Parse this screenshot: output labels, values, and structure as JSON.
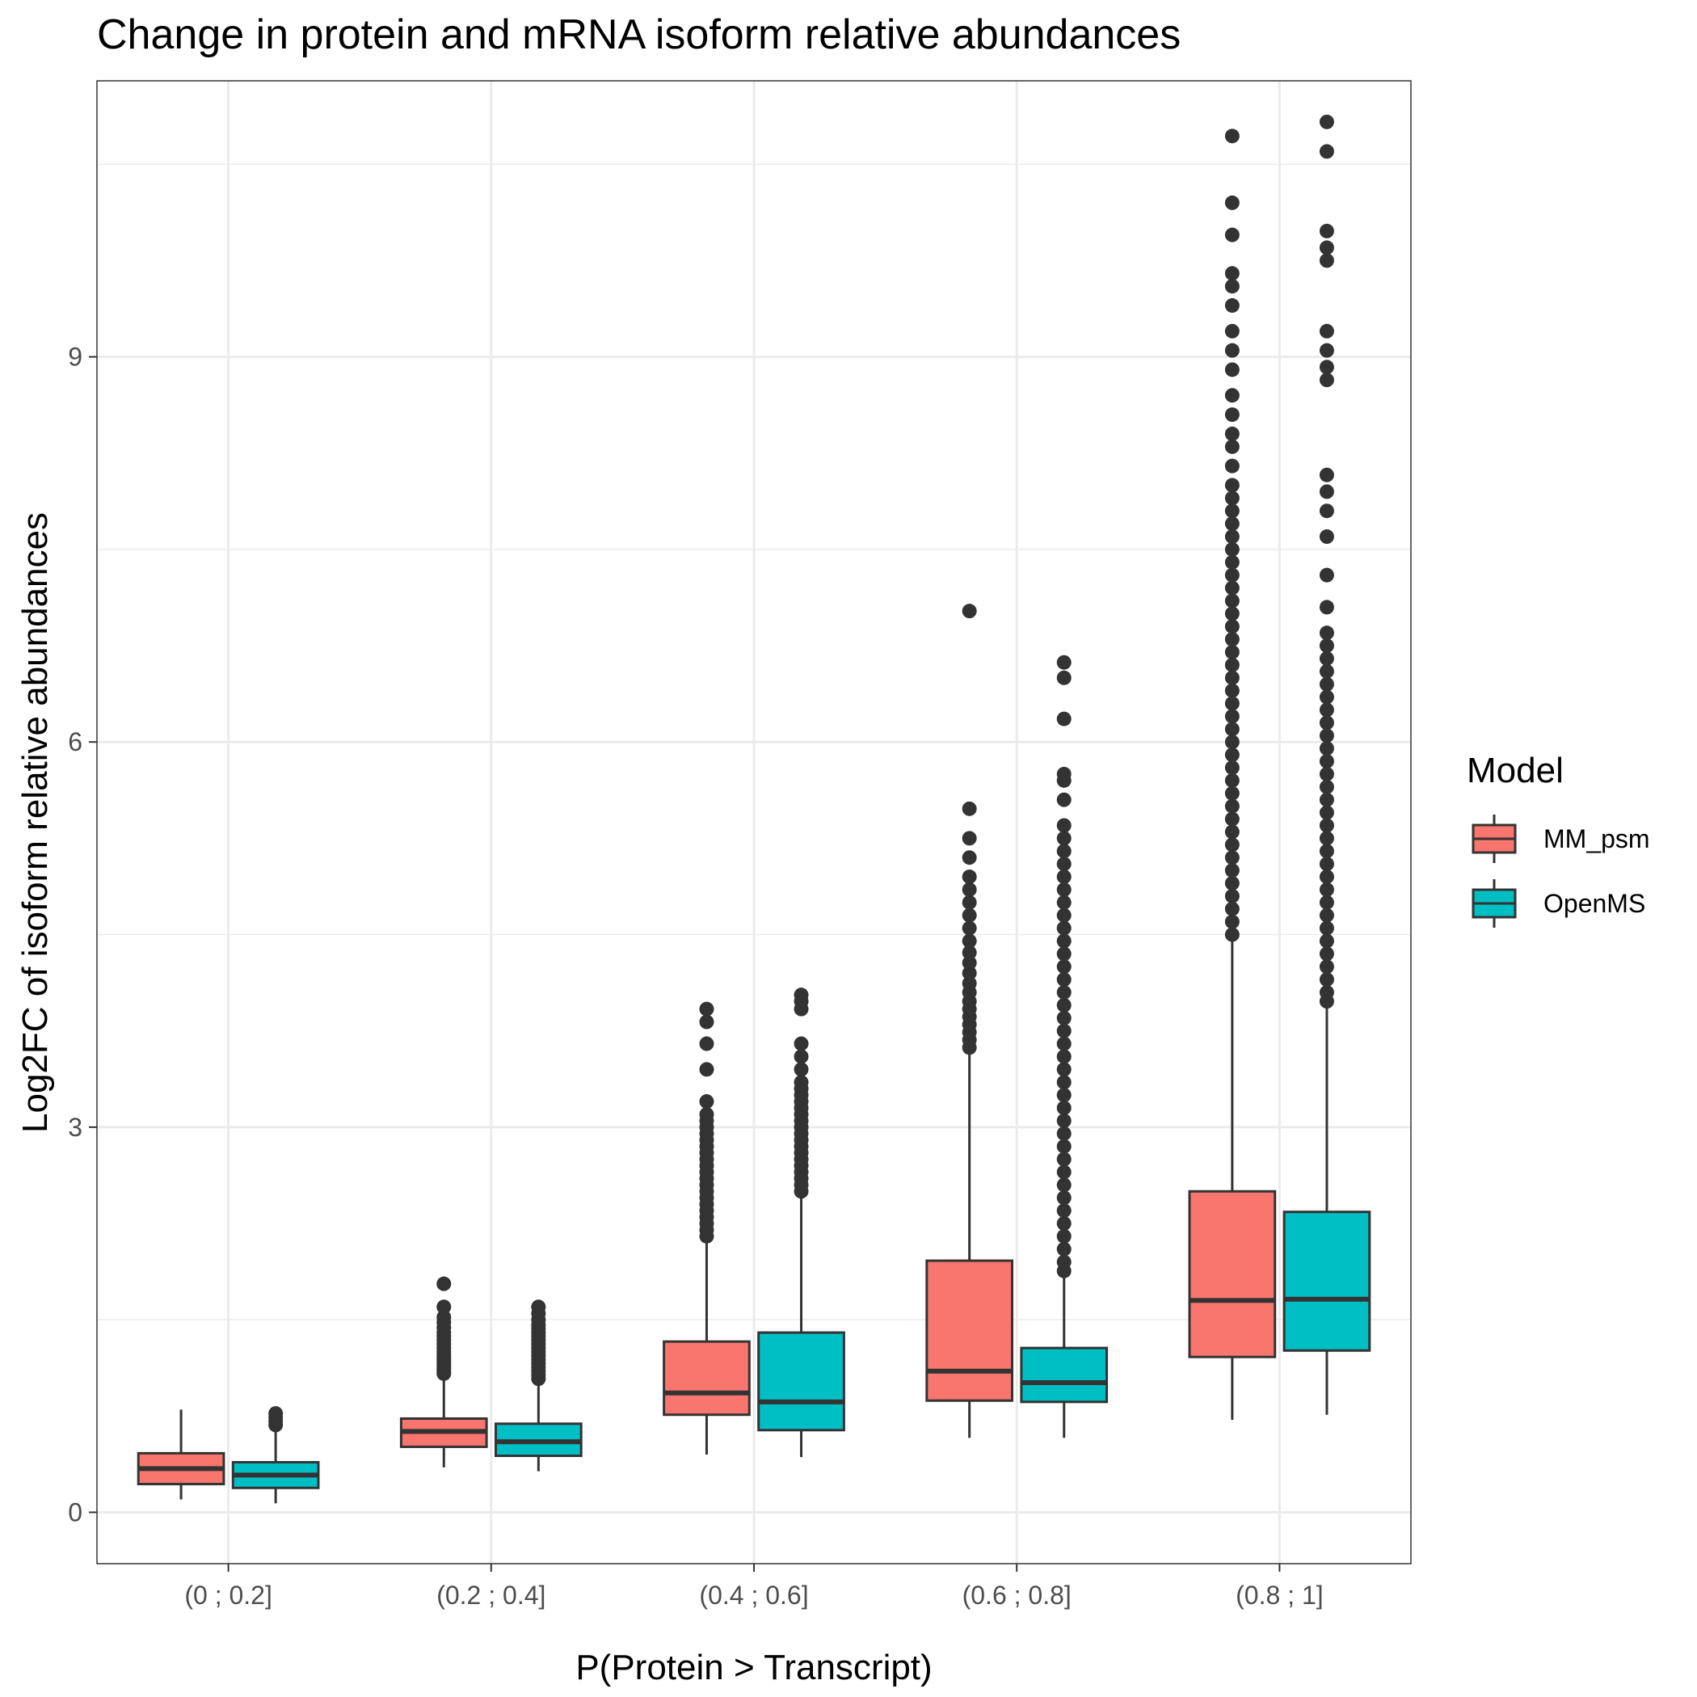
{
  "chart_data": {
    "type": "box",
    "title": "Change in protein and mRNA isoform relative abundances",
    "xlabel": "P(Protein > Transcript)",
    "ylabel": "Log2FC of isoform relative abundances",
    "categories": [
      "(0 ; 0.2]",
      "(0.2 ; 0.4]",
      "(0.4 ; 0.6]",
      "(0.6 ; 0.8]",
      "(0.8 ; 1]"
    ],
    "ylim": [
      -0.4,
      11.15
    ],
    "yticks": [
      0,
      3,
      6,
      9
    ],
    "ytick_labels": [
      "0",
      "3",
      "6",
      "9"
    ],
    "grid": true,
    "legend": {
      "title": "Model",
      "position": "right"
    },
    "colors": {
      "MM_psm": "#F8766D",
      "OpenMS": "#00BFC4",
      "outline": "#333333",
      "grid": "#EBEBEB",
      "panel_border": "#333333"
    },
    "series": [
      {
        "name": "MM_psm",
        "boxes": [
          {
            "whisker_low": 0.1,
            "q1": 0.22,
            "median": 0.34,
            "q3": 0.46,
            "whisker_high": 0.8,
            "outliers": []
          },
          {
            "whisker_low": 0.35,
            "q1": 0.51,
            "median": 0.63,
            "q3": 0.73,
            "whisker_high": 1.05,
            "outliers": [
              1.08,
              1.1,
              1.12,
              1.14,
              1.16,
              1.18,
              1.2,
              1.22,
              1.25,
              1.28,
              1.31,
              1.34,
              1.37,
              1.4,
              1.44,
              1.48,
              1.52,
              1.6,
              1.78
            ]
          },
          {
            "whisker_low": 0.45,
            "q1": 0.76,
            "median": 0.93,
            "q3": 1.33,
            "whisker_high": 2.1,
            "outliers": [
              2.15,
              2.2,
              2.25,
              2.3,
              2.35,
              2.4,
              2.45,
              2.5,
              2.55,
              2.6,
              2.65,
              2.7,
              2.75,
              2.8,
              2.85,
              2.9,
              2.95,
              3.0,
              3.05,
              3.1,
              3.2,
              3.45,
              3.65,
              3.82,
              3.92
            ]
          },
          {
            "whisker_low": 0.58,
            "q1": 0.87,
            "median": 1.1,
            "q3": 1.96,
            "whisker_high": 3.6,
            "outliers": [
              3.62,
              3.68,
              3.74,
              3.8,
              3.86,
              3.92,
              3.98,
              4.05,
              4.12,
              4.2,
              4.28,
              4.36,
              4.45,
              4.55,
              4.65,
              4.75,
              4.85,
              4.95,
              5.1,
              5.25,
              5.48,
              7.02
            ]
          },
          {
            "whisker_low": 0.72,
            "q1": 1.21,
            "median": 1.65,
            "q3": 2.5,
            "whisker_high": 4.45,
            "outliers": [
              4.5,
              4.6,
              4.7,
              4.8,
              4.9,
              5.0,
              5.1,
              5.2,
              5.3,
              5.4,
              5.5,
              5.6,
              5.7,
              5.8,
              5.9,
              6.0,
              6.1,
              6.2,
              6.3,
              6.4,
              6.5,
              6.6,
              6.7,
              6.8,
              6.9,
              7.0,
              7.1,
              7.2,
              7.3,
              7.4,
              7.5,
              7.6,
              7.7,
              7.8,
              7.9,
              8.0,
              8.15,
              8.3,
              8.4,
              8.55,
              8.7,
              8.9,
              9.05,
              9.2,
              9.4,
              9.55,
              9.65,
              9.95,
              10.2,
              10.72
            ]
          }
        ]
      },
      {
        "name": "OpenMS",
        "boxes": [
          {
            "whisker_low": 0.07,
            "q1": 0.19,
            "median": 0.29,
            "q3": 0.39,
            "whisker_high": 0.65,
            "outliers": [
              0.68,
              0.71,
              0.74,
              0.77
            ]
          },
          {
            "whisker_low": 0.32,
            "q1": 0.44,
            "median": 0.55,
            "q3": 0.69,
            "whisker_high": 1.0,
            "outliers": [
              1.04,
              1.07,
              1.1,
              1.13,
              1.16,
              1.19,
              1.22,
              1.25,
              1.28,
              1.31,
              1.34,
              1.37,
              1.4,
              1.43,
              1.46,
              1.5,
              1.55,
              1.6
            ]
          },
          {
            "whisker_low": 0.43,
            "q1": 0.64,
            "median": 0.86,
            "q3": 1.4,
            "whisker_high": 2.48,
            "outliers": [
              2.5,
              2.55,
              2.6,
              2.65,
              2.7,
              2.75,
              2.8,
              2.85,
              2.9,
              2.95,
              3.0,
              3.05,
              3.1,
              3.15,
              3.2,
              3.25,
              3.3,
              3.35,
              3.45,
              3.55,
              3.65,
              3.92,
              3.98,
              4.03
            ]
          },
          {
            "whisker_low": 0.58,
            "q1": 0.86,
            "median": 1.01,
            "q3": 1.28,
            "whisker_high": 1.85,
            "outliers": [
              1.88,
              1.95,
              2.05,
              2.15,
              2.25,
              2.35,
              2.45,
              2.55,
              2.65,
              2.75,
              2.85,
              2.95,
              3.05,
              3.15,
              3.25,
              3.35,
              3.45,
              3.55,
              3.65,
              3.75,
              3.85,
              3.95,
              4.05,
              4.15,
              4.25,
              4.35,
              4.45,
              4.55,
              4.65,
              4.75,
              4.85,
              4.95,
              5.05,
              5.15,
              5.25,
              5.35,
              5.55,
              5.7,
              5.75,
              6.18,
              6.5,
              6.62
            ]
          },
          {
            "whisker_low": 0.76,
            "q1": 1.26,
            "median": 1.66,
            "q3": 2.34,
            "whisker_high": 3.95,
            "outliers": [
              3.98,
              4.05,
              4.15,
              4.25,
              4.35,
              4.45,
              4.55,
              4.65,
              4.75,
              4.85,
              4.95,
              5.05,
              5.15,
              5.25,
              5.35,
              5.45,
              5.55,
              5.65,
              5.75,
              5.85,
              5.95,
              6.05,
              6.15,
              6.25,
              6.35,
              6.45,
              6.55,
              6.65,
              6.75,
              6.85,
              7.05,
              7.3,
              7.6,
              7.8,
              7.95,
              8.08,
              8.82,
              8.92,
              9.05,
              9.2,
              9.75,
              9.85,
              9.98,
              10.6,
              10.83
            ]
          }
        ]
      }
    ]
  }
}
